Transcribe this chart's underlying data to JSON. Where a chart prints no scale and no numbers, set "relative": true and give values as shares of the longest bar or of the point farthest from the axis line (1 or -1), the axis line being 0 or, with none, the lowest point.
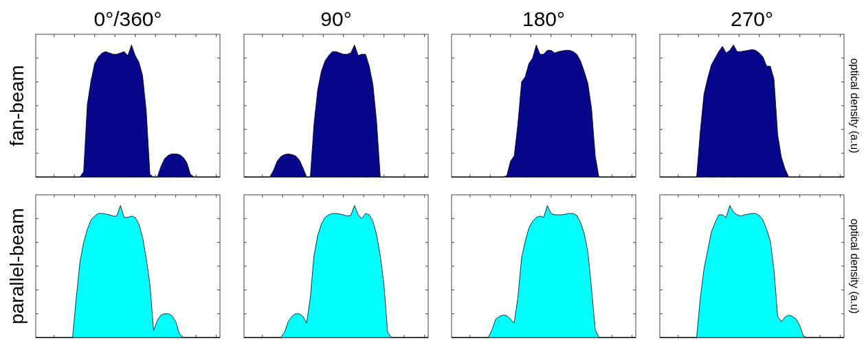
{
  "chart_data": [
    {
      "type": "area",
      "title": "0°/360°",
      "ylabel": "fan-beam",
      "relative": true,
      "color": "#07078c",
      "categories": [
        null,
        null,
        null,
        null,
        null,
        null,
        null,
        null,
        null,
        null,
        null,
        null,
        null,
        null,
        null,
        null,
        null,
        null,
        null,
        null,
        null,
        null,
        null,
        null,
        null,
        null,
        null,
        null,
        null,
        null,
        null,
        null,
        null,
        null,
        null,
        null,
        null,
        null,
        null,
        null,
        null,
        null,
        null,
        null,
        null,
        null,
        null,
        null,
        null,
        null,
        null
      ],
      "values": [
        0,
        0,
        0,
        0,
        0,
        0,
        0,
        0,
        0,
        0,
        0,
        0,
        0,
        0.04,
        0.55,
        0.73,
        0.86,
        0.91,
        0.94,
        0.95,
        0.94,
        0.93,
        0.93,
        0.94,
        0.95,
        0.92,
        1,
        0.92,
        0.87,
        0.77,
        0.5,
        0.02,
        0,
        0,
        0.08,
        0.14,
        0.165,
        0.175,
        0.175,
        0.17,
        0.15,
        0.11,
        0.02,
        0,
        0,
        0,
        0,
        0,
        0,
        0,
        0
      ]
    },
    {
      "type": "area",
      "title": "90°",
      "relative": true,
      "color": "#07078c",
      "categories": [
        null,
        null,
        null,
        null,
        null,
        null,
        null,
        null,
        null,
        null,
        null,
        null,
        null,
        null,
        null,
        null,
        null,
        null,
        null,
        null,
        null,
        null,
        null,
        null,
        null,
        null,
        null,
        null,
        null,
        null,
        null,
        null,
        null,
        null,
        null,
        null,
        null,
        null,
        null,
        null,
        null,
        null,
        null,
        null,
        null,
        null,
        null,
        null,
        null,
        null,
        null
      ],
      "values": [
        0,
        0,
        0,
        0,
        0,
        0,
        0,
        0,
        0.05,
        0.12,
        0.155,
        0.17,
        0.175,
        0.17,
        0.16,
        0.13,
        0.07,
        0,
        0,
        0.4,
        0.66,
        0.8,
        0.88,
        0.92,
        0.95,
        0.95,
        0.94,
        0.93,
        0.93,
        0.94,
        1,
        0.92,
        0.93,
        0.93,
        0.84,
        0.7,
        0.42,
        0,
        0,
        0,
        0,
        0,
        0,
        0,
        0,
        0,
        0,
        0,
        0,
        0,
        0
      ]
    },
    {
      "type": "area",
      "title": "180°",
      "relative": true,
      "color": "#07078c",
      "categories": [
        null,
        null,
        null,
        null,
        null,
        null,
        null,
        null,
        null,
        null,
        null,
        null,
        null,
        null,
        null,
        null,
        null,
        null,
        null,
        null,
        null,
        null,
        null,
        null,
        null,
        null,
        null,
        null,
        null,
        null,
        null,
        null,
        null,
        null,
        null,
        null,
        null,
        null,
        null,
        null,
        null,
        null,
        null,
        null,
        null,
        null,
        null,
        null,
        null,
        null,
        null
      ],
      "values": [
        0,
        0,
        0,
        0,
        0,
        0,
        0,
        0,
        0,
        0,
        0,
        0,
        0,
        0,
        0,
        0.01,
        0.12,
        0.16,
        0.4,
        0.72,
        0.76,
        0.86,
        0.9,
        1,
        0.93,
        0.93,
        0.96,
        0.96,
        0.94,
        0.95,
        0.955,
        0.96,
        0.96,
        0.95,
        0.93,
        0.88,
        0.8,
        0.71,
        0.52,
        0.16,
        0,
        0,
        0,
        0,
        0,
        0,
        0,
        0,
        0,
        0,
        0
      ]
    },
    {
      "type": "area",
      "title": "270°",
      "y2label": "optical density (a.u)",
      "relative": true,
      "color": "#07078c",
      "categories": [
        null,
        null,
        null,
        null,
        null,
        null,
        null,
        null,
        null,
        null,
        null,
        null,
        null,
        null,
        null,
        null,
        null,
        null,
        null,
        null,
        null,
        null,
        null,
        null,
        null,
        null,
        null,
        null,
        null,
        null,
        null,
        null,
        null,
        null,
        null,
        null,
        null,
        null,
        null,
        null,
        null,
        null,
        null,
        null,
        null,
        null,
        null,
        null,
        null,
        null,
        null
      ],
      "values": [
        0,
        0,
        0,
        0,
        0,
        0,
        0,
        0,
        0,
        0,
        0,
        0.35,
        0.63,
        0.75,
        0.85,
        0.9,
        0.95,
        0.99,
        0.94,
        0.96,
        1,
        0.95,
        0.95,
        0.955,
        0.96,
        0.965,
        0.96,
        0.94,
        0.91,
        0.84,
        0.84,
        0.74,
        0.32,
        0.15,
        0.06,
        0,
        0,
        0,
        0,
        0,
        0,
        0,
        0,
        0,
        0,
        0,
        0,
        0,
        0,
        0,
        0
      ]
    },
    {
      "type": "area",
      "ylabel": "parallel-beam",
      "relative": true,
      "color": "#00ffff",
      "categories": [
        null,
        null,
        null,
        null,
        null,
        null,
        null,
        null,
        null,
        null,
        null,
        null,
        null,
        null,
        null,
        null,
        null,
        null,
        null,
        null,
        null,
        null,
        null,
        null,
        null,
        null,
        null,
        null,
        null,
        null,
        null,
        null,
        null,
        null,
        null,
        null,
        null,
        null,
        null,
        null,
        null,
        null,
        null,
        null,
        null,
        null,
        null,
        null,
        null,
        null,
        null
      ],
      "values": [
        0,
        0,
        0,
        0,
        0,
        0,
        0,
        0,
        0,
        0,
        0,
        0.3,
        0.57,
        0.72,
        0.82,
        0.89,
        0.92,
        0.94,
        0.94,
        0.935,
        0.93,
        0.92,
        0.92,
        1,
        0.91,
        0.91,
        0.92,
        0.91,
        0.86,
        0.76,
        0.6,
        0.4,
        0.05,
        0.13,
        0.17,
        0.18,
        0.18,
        0.165,
        0.12,
        0.03,
        0,
        0,
        0,
        0,
        0,
        0,
        0,
        0,
        0,
        0,
        0
      ]
    },
    {
      "type": "area",
      "relative": true,
      "color": "#00ffff",
      "categories": [
        null,
        null,
        null,
        null,
        null,
        null,
        null,
        null,
        null,
        null,
        null,
        null,
        null,
        null,
        null,
        null,
        null,
        null,
        null,
        null,
        null,
        null,
        null,
        null,
        null,
        null,
        null,
        null,
        null,
        null,
        null,
        null,
        null,
        null,
        null,
        null,
        null,
        null,
        null,
        null,
        null,
        null,
        null,
        null,
        null,
        null,
        null,
        null,
        null,
        null,
        null
      ],
      "values": [
        0,
        0,
        0,
        0,
        0,
        0,
        0,
        0,
        0,
        0,
        0,
        0.04,
        0.12,
        0.16,
        0.18,
        0.18,
        0.16,
        0.11,
        0.3,
        0.62,
        0.77,
        0.86,
        0.91,
        0.93,
        0.94,
        0.94,
        0.935,
        0.93,
        0.92,
        0.925,
        1,
        0.93,
        0.9,
        0.94,
        0.93,
        0.88,
        0.78,
        0.62,
        0.4,
        0.04,
        0,
        0,
        0,
        0,
        0,
        0,
        0,
        0,
        0,
        0,
        0
      ]
    },
    {
      "type": "area",
      "relative": true,
      "color": "#00ffff",
      "categories": [
        null,
        null,
        null,
        null,
        null,
        null,
        null,
        null,
        null,
        null,
        null,
        null,
        null,
        null,
        null,
        null,
        null,
        null,
        null,
        null,
        null,
        null,
        null,
        null,
        null,
        null,
        null,
        null,
        null,
        null,
        null,
        null,
        null,
        null,
        null,
        null,
        null,
        null,
        null,
        null,
        null,
        null,
        null,
        null,
        null,
        null,
        null,
        null,
        null,
        null,
        null
      ],
      "values": [
        0,
        0,
        0,
        0,
        0,
        0,
        0,
        0,
        0,
        0,
        0,
        0.06,
        0.14,
        0.16,
        0.17,
        0.165,
        0.14,
        0.11,
        0.3,
        0.6,
        0.73,
        0.83,
        0.88,
        0.91,
        0.92,
        0.91,
        1,
        0.94,
        0.93,
        0.93,
        0.93,
        0.935,
        0.94,
        0.94,
        0.925,
        0.87,
        0.79,
        0.65,
        0.37,
        0.06,
        0,
        0,
        0,
        0,
        0,
        0,
        0,
        0,
        0,
        0,
        0
      ]
    },
    {
      "type": "area",
      "y2label": "optical density (a.u)",
      "relative": true,
      "color": "#00ffff",
      "categories": [
        null,
        null,
        null,
        null,
        null,
        null,
        null,
        null,
        null,
        null,
        null,
        null,
        null,
        null,
        null,
        null,
        null,
        null,
        null,
        null,
        null,
        null,
        null,
        null,
        null,
        null,
        null,
        null,
        null,
        null,
        null,
        null,
        null,
        null,
        null,
        null,
        null,
        null,
        null,
        null,
        null,
        null,
        null,
        null,
        null,
        null,
        null,
        null,
        null,
        null,
        null
      ],
      "values": [
        0,
        0,
        0,
        0,
        0,
        0,
        0,
        0,
        0,
        0,
        0,
        0.3,
        0.52,
        0.66,
        0.8,
        0.87,
        0.93,
        0.93,
        0.91,
        1,
        0.95,
        0.93,
        0.92,
        0.93,
        0.935,
        0.94,
        0.94,
        0.925,
        0.89,
        0.82,
        0.73,
        0.51,
        0.16,
        0.12,
        0.155,
        0.17,
        0.16,
        0.14,
        0.09,
        0.01,
        0,
        0,
        0,
        0,
        0,
        0,
        0,
        0,
        0,
        0,
        0
      ]
    }
  ]
}
